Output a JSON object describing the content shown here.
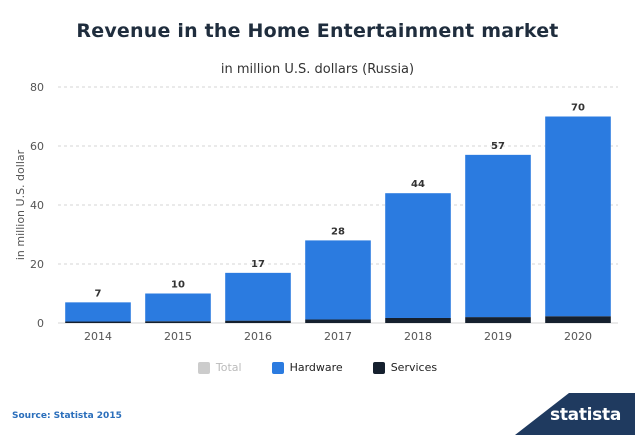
{
  "header": {
    "title": "Revenue in the Home Entertainment market",
    "subtitle": "in million U.S. dollars (Russia)"
  },
  "source": "Source: Statista 2015",
  "logo": "statista",
  "colors": {
    "hardware": "#2b7be0",
    "services": "#15202e",
    "total": "#cccccc",
    "grid": "#d6d6d6",
    "axis_text": "#555555"
  },
  "legend": [
    {
      "name": "Total",
      "color": "#cccccc",
      "disabled": true
    },
    {
      "name": "Hardware",
      "color": "#2b7be0",
      "disabled": false
    },
    {
      "name": "Services",
      "color": "#15202e",
      "disabled": false
    }
  ],
  "chart_data": {
    "type": "bar",
    "stacked": true,
    "title": "Revenue in the Home Entertainment market",
    "subtitle": "in million U.S. dollars (Russia)",
    "ylabel": "in million U.S. dollar",
    "xlabel": "",
    "categories": [
      "2014",
      "2015",
      "2016",
      "2017",
      "2018",
      "2019",
      "2020"
    ],
    "ylim": [
      0,
      80
    ],
    "yticks": [
      0,
      20,
      40,
      60,
      80
    ],
    "totals": [
      7,
      10,
      17,
      28,
      44,
      57,
      70
    ],
    "series": [
      {
        "name": "Services",
        "values": [
          0.5,
          0.6,
          0.8,
          1.2,
          1.7,
          2.0,
          2.3
        ]
      },
      {
        "name": "Hardware",
        "values": [
          6.5,
          9.4,
          16.2,
          26.8,
          42.3,
          55.0,
          67.7
        ]
      }
    ],
    "grid": true,
    "legend_position": "bottom-center"
  }
}
